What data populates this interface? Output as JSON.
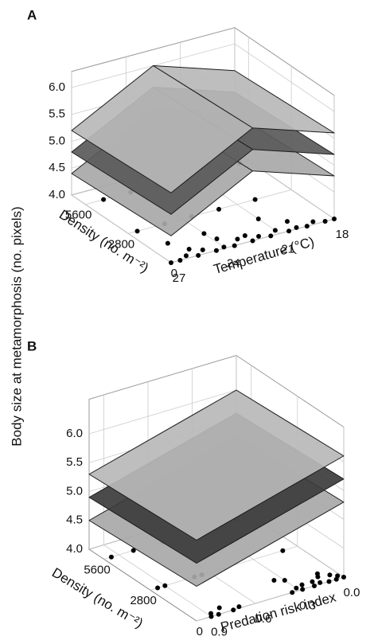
{
  "zlabel": "Body size at metamorphosis (no. pixels)",
  "chart_data": [
    {
      "type": "surface3d",
      "label": "A",
      "xlabel": "Density (no. m⁻²)",
      "ylabel": "Temperature (°C)",
      "xlim": [
        0,
        6500
      ],
      "xticks": [
        0,
        2800,
        5600
      ],
      "ylim": [
        18,
        27
      ],
      "yticks": [
        27,
        24,
        21,
        18
      ],
      "zlim": [
        4.0,
        6.3
      ],
      "zticks": [
        {
          "value": 4,
          "label": "4.0"
        },
        4.5,
        {
          "value": 5,
          "label": "5.0"
        },
        5.5,
        {
          "value": 6,
          "label": "6.0"
        }
      ],
      "grid": true,
      "surface_x": [
        0,
        6500
      ],
      "surface_y": [
        18,
        22.5,
        27
      ],
      "surfaces": [
        {
          "color": "#a8a8a8",
          "values": [
            [
              4.8,
              5.3,
              4.5
            ],
            [
              4.7,
              5.2,
              4.4
            ]
          ]
        },
        {
          "color": "#5a5a5a",
          "values": [
            [
              5.2,
              5.7,
              4.9
            ],
            [
              5.1,
              5.6,
              4.8
            ]
          ]
        },
        {
          "color": "#b8b8b8",
          "values": [
            [
              5.6,
              6.1,
              5.3
            ],
            [
              5.5,
              6.0,
              5.2
            ]
          ]
        }
      ],
      "points": {
        "color": "#000000",
        "x": [
          5600,
          5600,
          5600,
          5600,
          5600,
          5600,
          2800,
          2800,
          2800,
          2800,
          2800,
          1400,
          1400,
          1400,
          0,
          0,
          200,
          0,
          300,
          0,
          100,
          0,
          400,
          0,
          200,
          0,
          300,
          0,
          100,
          0,
          200,
          0,
          0,
          600,
          500,
          700,
          800
        ],
        "y": [
          26,
          24.5,
          23,
          21.5,
          19.5,
          18.5,
          26.5,
          25,
          23.5,
          22,
          20,
          26,
          24,
          21,
          27,
          26.5,
          26,
          25.5,
          25,
          24.5,
          24,
          23.5,
          23,
          22.5,
          22,
          21.5,
          21,
          20.5,
          20,
          19.5,
          19,
          18.5,
          18,
          25.5,
          22.5,
          20,
          23.8
        ]
      }
    },
    {
      "type": "surface3d",
      "label": "B",
      "xlabel": "Density (no. m⁻²)",
      "ylabel": "Predation risk index",
      "xlim": [
        0,
        6500
      ],
      "xticks": [
        0,
        2800,
        5600
      ],
      "ylim": [
        0,
        1.0
      ],
      "yticks": [
        0.9,
        0.6,
        0.3,
        {
          "value": 0,
          "label": "0.0"
        }
      ],
      "zlim": [
        4.0,
        6.6
      ],
      "zticks": [
        {
          "value": 4,
          "label": "4.0"
        },
        4.5,
        {
          "value": 5,
          "label": "5.0"
        },
        5.5,
        {
          "value": 6,
          "label": "6.0"
        }
      ],
      "grid": true,
      "surface_x": [
        0,
        6500
      ],
      "surface_y": [
        0,
        1.0
      ],
      "surfaces": [
        {
          "color": "#a8a8a8",
          "values": [
            [
              5.3,
              4.6
            ],
            [
              5.2,
              4.5
            ]
          ]
        },
        {
          "color": "#3c3c3c",
          "values": [
            [
              5.7,
              5.0
            ],
            [
              5.6,
              4.9
            ]
          ]
        },
        {
          "color": "#b8b8b8",
          "values": [
            [
              6.1,
              5.4
            ],
            [
              6.0,
              5.3
            ]
          ]
        }
      ],
      "points": {
        "color": "#000000",
        "x": [
          5600,
          5600,
          5600,
          5600,
          5600,
          2800,
          2800,
          2800,
          2800,
          2800,
          0,
          200,
          0,
          400,
          0,
          100,
          0,
          200,
          0,
          300,
          0,
          100,
          0,
          500,
          0,
          200,
          0,
          400,
          700,
          300,
          900,
          1100
        ],
        "y": [
          0.95,
          0.8,
          0.6,
          0.1,
          0.05,
          0.95,
          0.9,
          0.7,
          0.65,
          0.1,
          0.9,
          0.88,
          0.85,
          0.8,
          0.75,
          0.7,
          0.35,
          0.3,
          0.28,
          0.25,
          0.2,
          0.15,
          0.1,
          0.12,
          0.05,
          0.02,
          0,
          0.05,
          0.1,
          0.18,
          0.3,
          0.35
        ]
      }
    }
  ]
}
